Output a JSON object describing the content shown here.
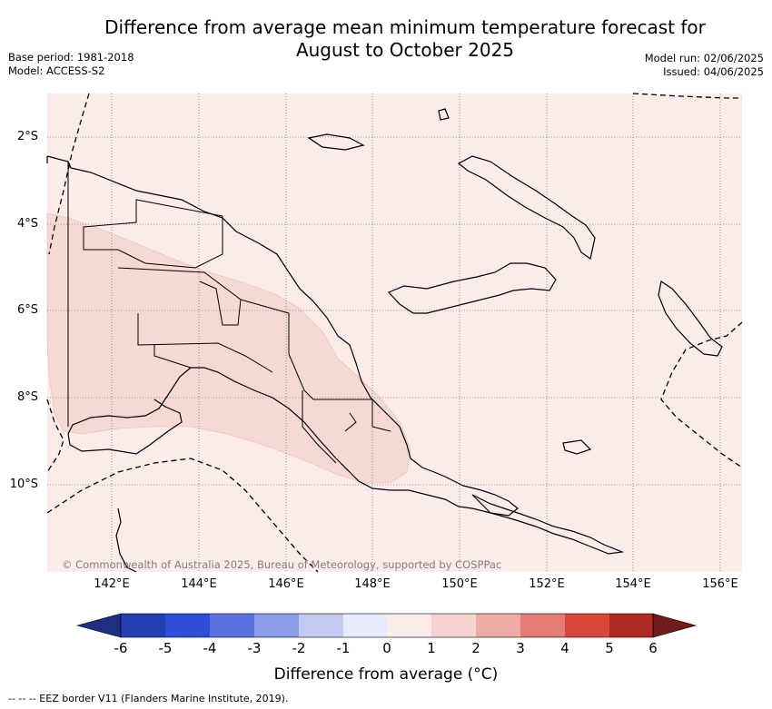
{
  "title_line1": "Difference from average mean minimum temperature forecast for",
  "title_line2": "August to October 2025",
  "base_period": "Base period: 1981-2018",
  "model": "Model: ACCESS-S2",
  "model_run": "Model run: 02/06/2025",
  "issued": "Issued: 04/06/2025",
  "lat_labels": [
    "2°S",
    "4°S",
    "6°S",
    "8°S",
    "10°S"
  ],
  "lon_labels": [
    "142°E",
    "144°E",
    "146°E",
    "148°E",
    "150°E",
    "152°E",
    "154°E",
    "156°E"
  ],
  "copyright": "© Commonwealth of Australia 2025, Bureau of Meteorology, supported by COSPPac",
  "colorbar": {
    "ticks": [
      "-6",
      "-5",
      "-4",
      "-3",
      "-2",
      "-1",
      "0",
      "1",
      "2",
      "3",
      "4",
      "5",
      "6"
    ],
    "colors": [
      "#1f2e80",
      "#2440b0",
      "#2e4ed8",
      "#5a72e0",
      "#8a9ce8",
      "#c2c9f2",
      "#e6eafa",
      "#fbebe9",
      "#f6d3d0",
      "#eeaaa4",
      "#e37d76",
      "#d9473c",
      "#ac2a22",
      "#6f1c1a"
    ],
    "title": "Difference from average (°C)"
  },
  "map_fills": {
    "background": "#fbebe9",
    "region": "#f6d8d5"
  },
  "footnote": "--  --  -- EEZ border V11 (Flanders Marine Institute, 2019)."
}
